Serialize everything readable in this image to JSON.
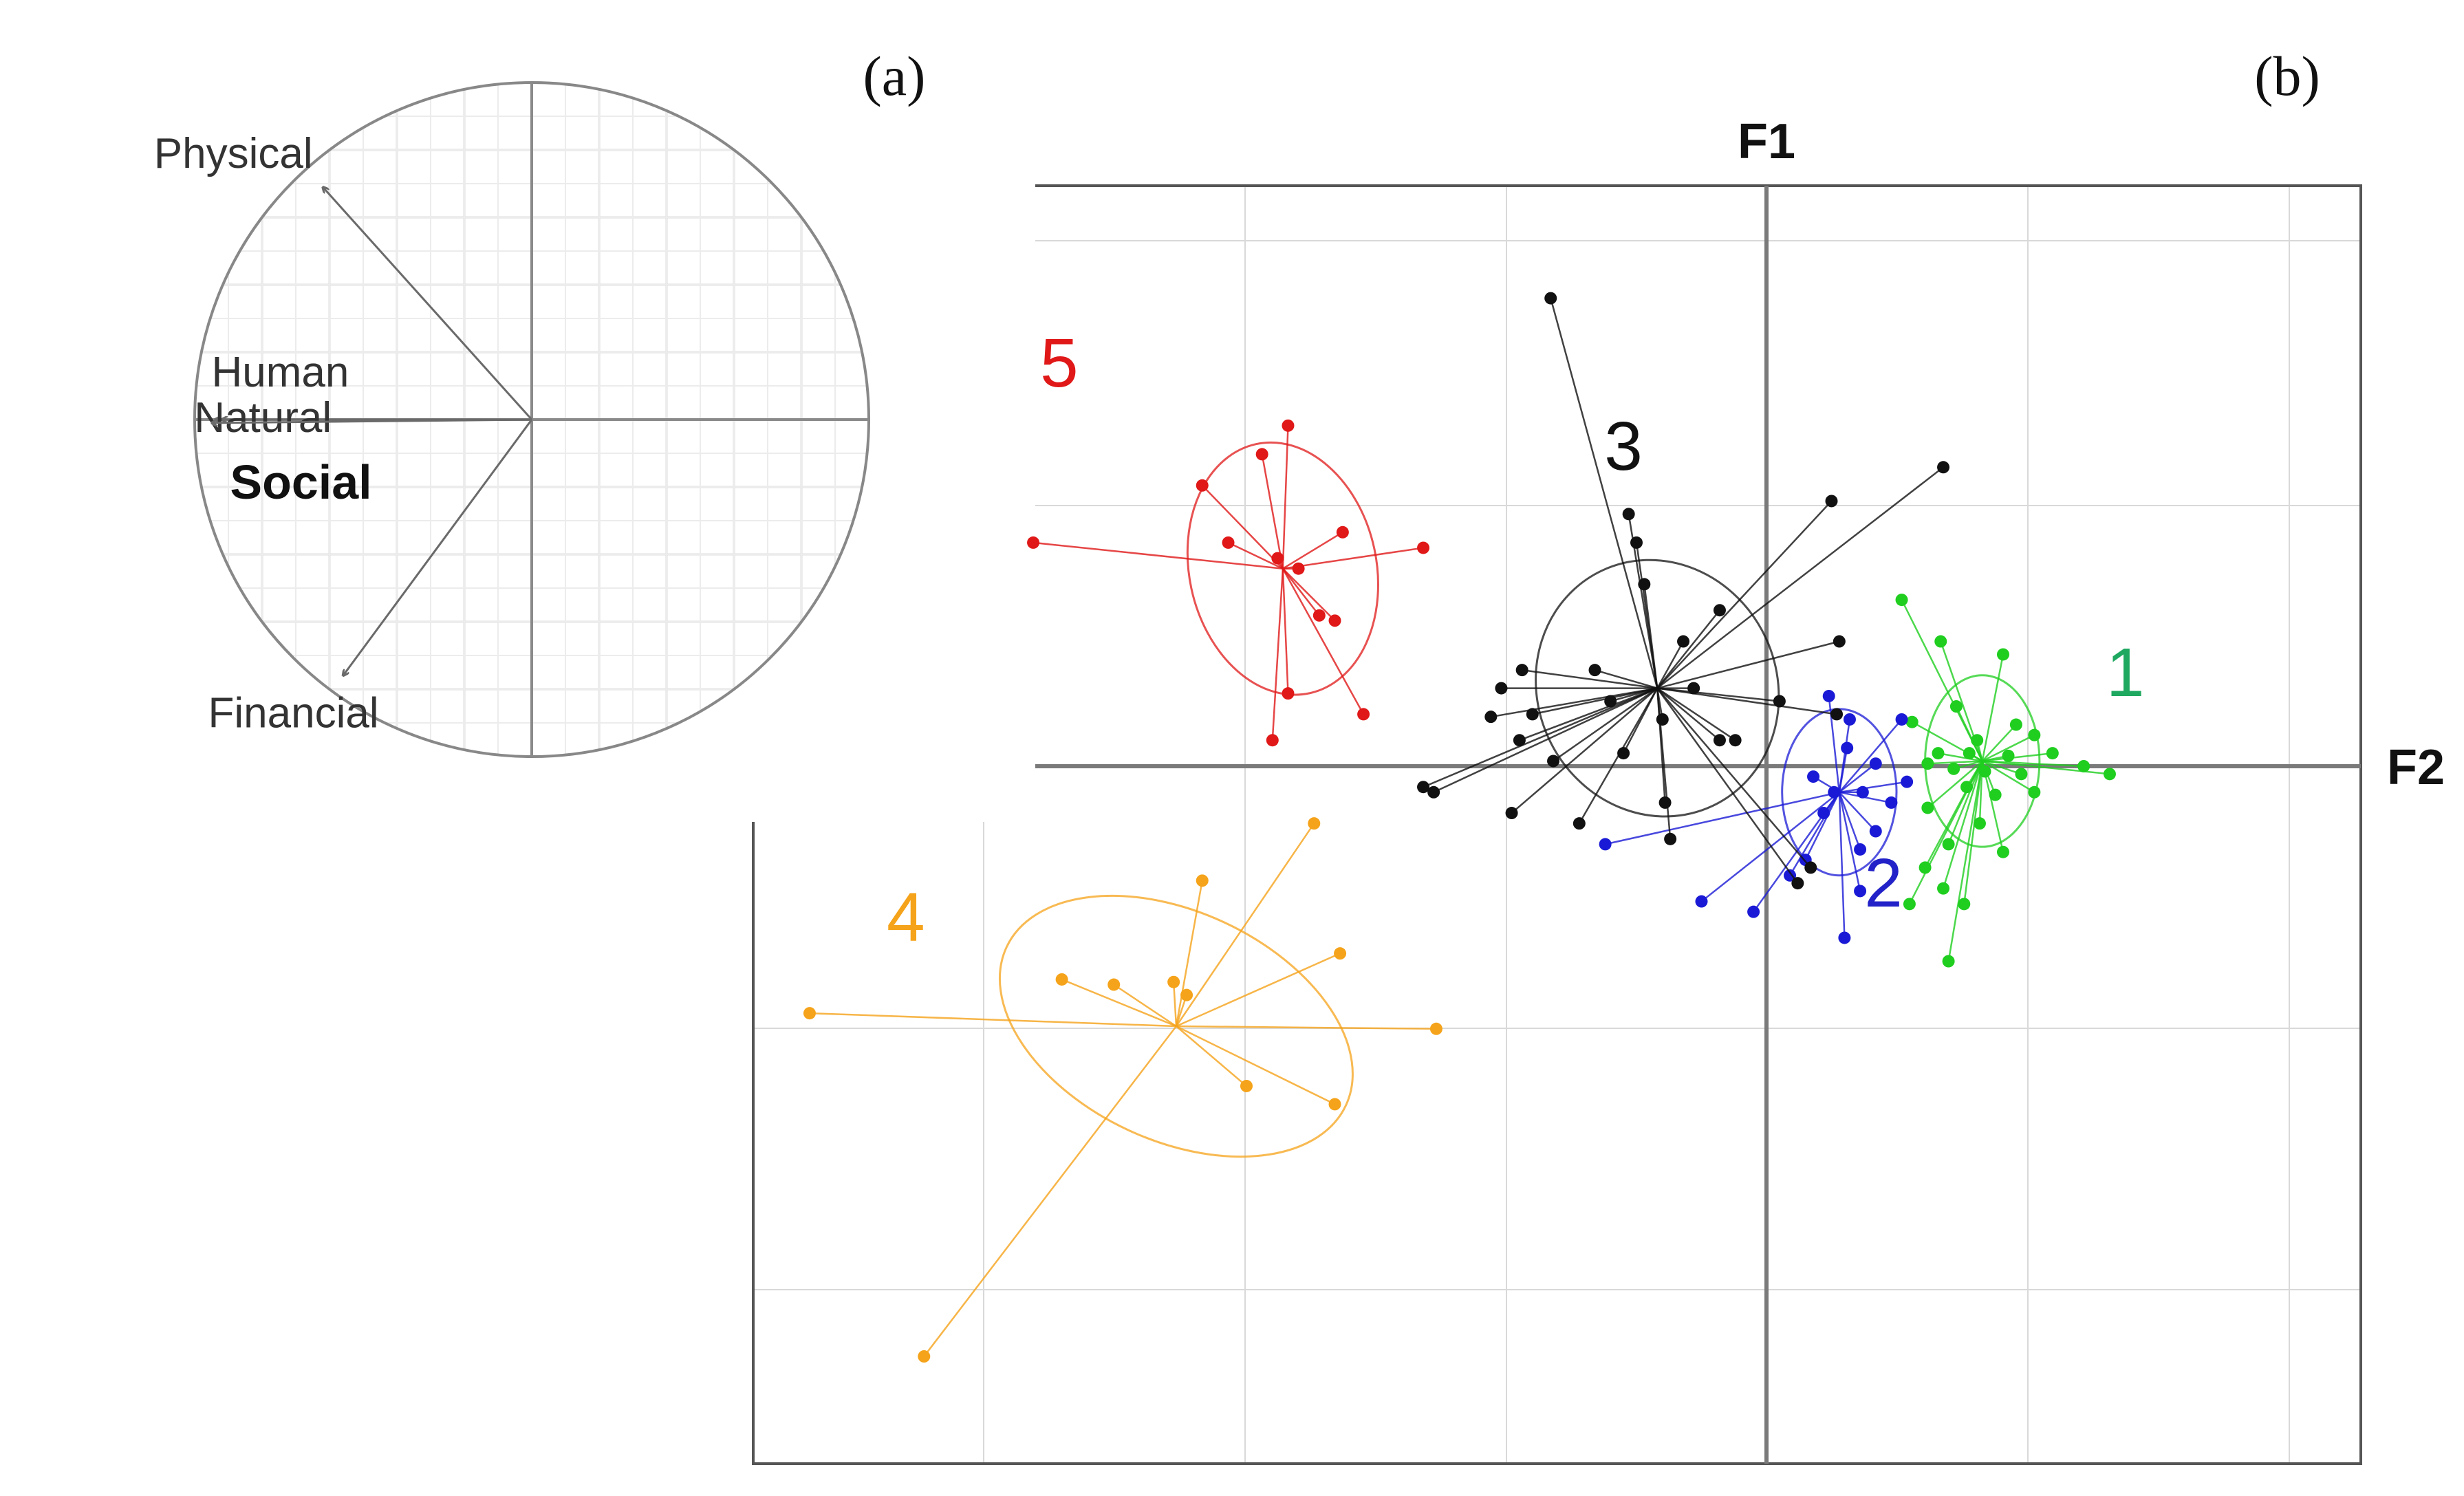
{
  "panel_labels": {
    "a": "(a)",
    "b": "(b)"
  },
  "chart_data": [
    {
      "type": "correlation-circle",
      "vectors": [
        {
          "label": "Physical",
          "x": -0.62,
          "y": 0.69
        },
        {
          "label": "Human",
          "x": -0.94,
          "y": 0.0
        },
        {
          "label": "Natural",
          "x": -0.92,
          "y": 0.0
        },
        {
          "label": "Social",
          "x": -0.95,
          "y": -0.01
        },
        {
          "label": "Financial",
          "x": -0.56,
          "y": -0.76
        }
      ],
      "xlim": [
        -1,
        1
      ],
      "ylim": [
        -1,
        1
      ],
      "grid": true
    },
    {
      "type": "scatter",
      "xlabel": "F2",
      "ylabel": "F1",
      "xlim": [
        -3.9,
        2.28
      ],
      "ylim": [
        -2.7,
        2.2
      ],
      "grid": true,
      "series": [
        {
          "name": "1",
          "color": "#1fce1f",
          "label_color": "#1fa860",
          "center": [
            0.83,
            0.02
          ],
          "ellipse": {
            "rx": 0.22,
            "ry": 0.33,
            "angle": 0
          },
          "points": [
            [
              0.52,
              0.64
            ],
            [
              0.67,
              0.48
            ],
            [
              0.91,
              0.43
            ],
            [
              0.73,
              0.23
            ],
            [
              0.56,
              0.17
            ],
            [
              1.03,
              0.12
            ],
            [
              0.66,
              0.05
            ],
            [
              0.78,
              0.05
            ],
            [
              0.93,
              0.04
            ],
            [
              0.62,
              0.01
            ],
            [
              0.72,
              -0.01
            ],
            [
              0.84,
              -0.02
            ],
            [
              0.98,
              -0.03
            ],
            [
              1.22,
              0.0
            ],
            [
              1.32,
              -0.03
            ],
            [
              0.77,
              -0.08
            ],
            [
              0.88,
              -0.11
            ],
            [
              1.03,
              -0.1
            ],
            [
              0.62,
              -0.16
            ],
            [
              0.82,
              -0.22
            ],
            [
              0.7,
              -0.3
            ],
            [
              0.91,
              -0.33
            ],
            [
              0.61,
              -0.39
            ],
            [
              0.68,
              -0.47
            ],
            [
              0.55,
              -0.53
            ],
            [
              0.76,
              -0.53
            ],
            [
              0.7,
              -0.75
            ],
            [
              0.96,
              0.16
            ],
            [
              1.1,
              0.05
            ],
            [
              0.81,
              0.1
            ]
          ]
        },
        {
          "name": "2",
          "color": "#1a1ad6",
          "label_color": "#2222c8",
          "center": [
            0.28,
            -0.1
          ],
          "ellipse": {
            "rx": 0.22,
            "ry": 0.32,
            "angle": 0
          },
          "points": [
            [
              0.24,
              0.27
            ],
            [
              0.32,
              0.18
            ],
            [
              0.52,
              0.18
            ],
            [
              0.31,
              0.07
            ],
            [
              0.42,
              0.01
            ],
            [
              0.18,
              -0.04
            ],
            [
              0.26,
              -0.1
            ],
            [
              0.37,
              -0.1
            ],
            [
              0.48,
              -0.14
            ],
            [
              0.22,
              -0.18
            ],
            [
              0.42,
              -0.25
            ],
            [
              0.36,
              -0.32
            ],
            [
              0.15,
              -0.36
            ],
            [
              -0.62,
              -0.3
            ],
            [
              -0.25,
              -0.52
            ],
            [
              -0.05,
              -0.56
            ],
            [
              0.3,
              -0.66
            ],
            [
              0.09,
              -0.42
            ],
            [
              0.54,
              -0.06
            ],
            [
              0.36,
              -0.48
            ]
          ]
        },
        {
          "name": "3",
          "color": "#111111",
          "label_color": "#111111",
          "center": [
            -0.42,
            0.3
          ],
          "ellipse": {
            "rx": 0.46,
            "ry": 0.5,
            "angle": 25
          },
          "points": [
            [
              -0.83,
              1.8
            ],
            [
              0.68,
              1.15
            ],
            [
              0.25,
              1.02
            ],
            [
              -0.53,
              0.97
            ],
            [
              -0.5,
              0.86
            ],
            [
              -0.47,
              0.7
            ],
            [
              -0.18,
              0.6
            ],
            [
              -0.32,
              0.48
            ],
            [
              0.28,
              0.48
            ],
            [
              -0.66,
              0.37
            ],
            [
              -0.94,
              0.37
            ],
            [
              -1.02,
              0.3
            ],
            [
              -0.28,
              0.3
            ],
            [
              -0.6,
              0.25
            ],
            [
              -0.9,
              0.2
            ],
            [
              -1.06,
              0.19
            ],
            [
              -0.4,
              0.18
            ],
            [
              0.05,
              0.25
            ],
            [
              -0.12,
              0.1
            ],
            [
              -0.18,
              0.1
            ],
            [
              -0.95,
              0.1
            ],
            [
              -0.82,
              0.02
            ],
            [
              -0.55,
              0.05
            ],
            [
              -1.28,
              -0.1
            ],
            [
              -1.32,
              -0.08
            ],
            [
              -0.98,
              -0.18
            ],
            [
              -0.72,
              -0.22
            ],
            [
              -0.39,
              -0.14
            ],
            [
              -0.37,
              -0.28
            ],
            [
              0.17,
              -0.39
            ],
            [
              0.12,
              -0.45
            ],
            [
              0.27,
              0.2
            ]
          ]
        },
        {
          "name": "4",
          "color": "#f5a31a",
          "label_color": "#f5a31a",
          "center": [
            -2.27,
            -1.0
          ],
          "ellipse": {
            "rx": 0.72,
            "ry": 0.44,
            "angle": -25
          },
          "points": [
            [
              -1.74,
              -0.22
            ],
            [
              -2.17,
              -0.44
            ],
            [
              -1.64,
              -0.72
            ],
            [
              -2.51,
              -0.84
            ],
            [
              -2.71,
              -0.82
            ],
            [
              -2.28,
              -0.83
            ],
            [
              -2.23,
              -0.88
            ],
            [
              -3.68,
              -0.95
            ],
            [
              -1.27,
              -1.01
            ],
            [
              -2.0,
              -1.23
            ],
            [
              -1.66,
              -1.3
            ],
            [
              -3.24,
              -2.27
            ]
          ]
        },
        {
          "name": "5",
          "color": "#e01818",
          "label_color": "#e01818",
          "center": [
            -1.86,
            0.76
          ],
          "ellipse": {
            "rx": 0.36,
            "ry": 0.49,
            "angle": 12
          },
          "points": [
            [
              -1.84,
              1.31
            ],
            [
              -1.94,
              1.2
            ],
            [
              -2.17,
              1.08
            ],
            [
              -2.07,
              0.86
            ],
            [
              -1.63,
              0.9
            ],
            [
              -2.82,
              0.86
            ],
            [
              -1.32,
              0.84
            ],
            [
              -1.88,
              0.8
            ],
            [
              -1.8,
              0.76
            ],
            [
              -1.66,
              0.56
            ],
            [
              -1.72,
              0.58
            ],
            [
              -1.84,
              0.28
            ],
            [
              -1.55,
              0.2
            ],
            [
              -1.9,
              0.1
            ]
          ]
        }
      ]
    }
  ]
}
